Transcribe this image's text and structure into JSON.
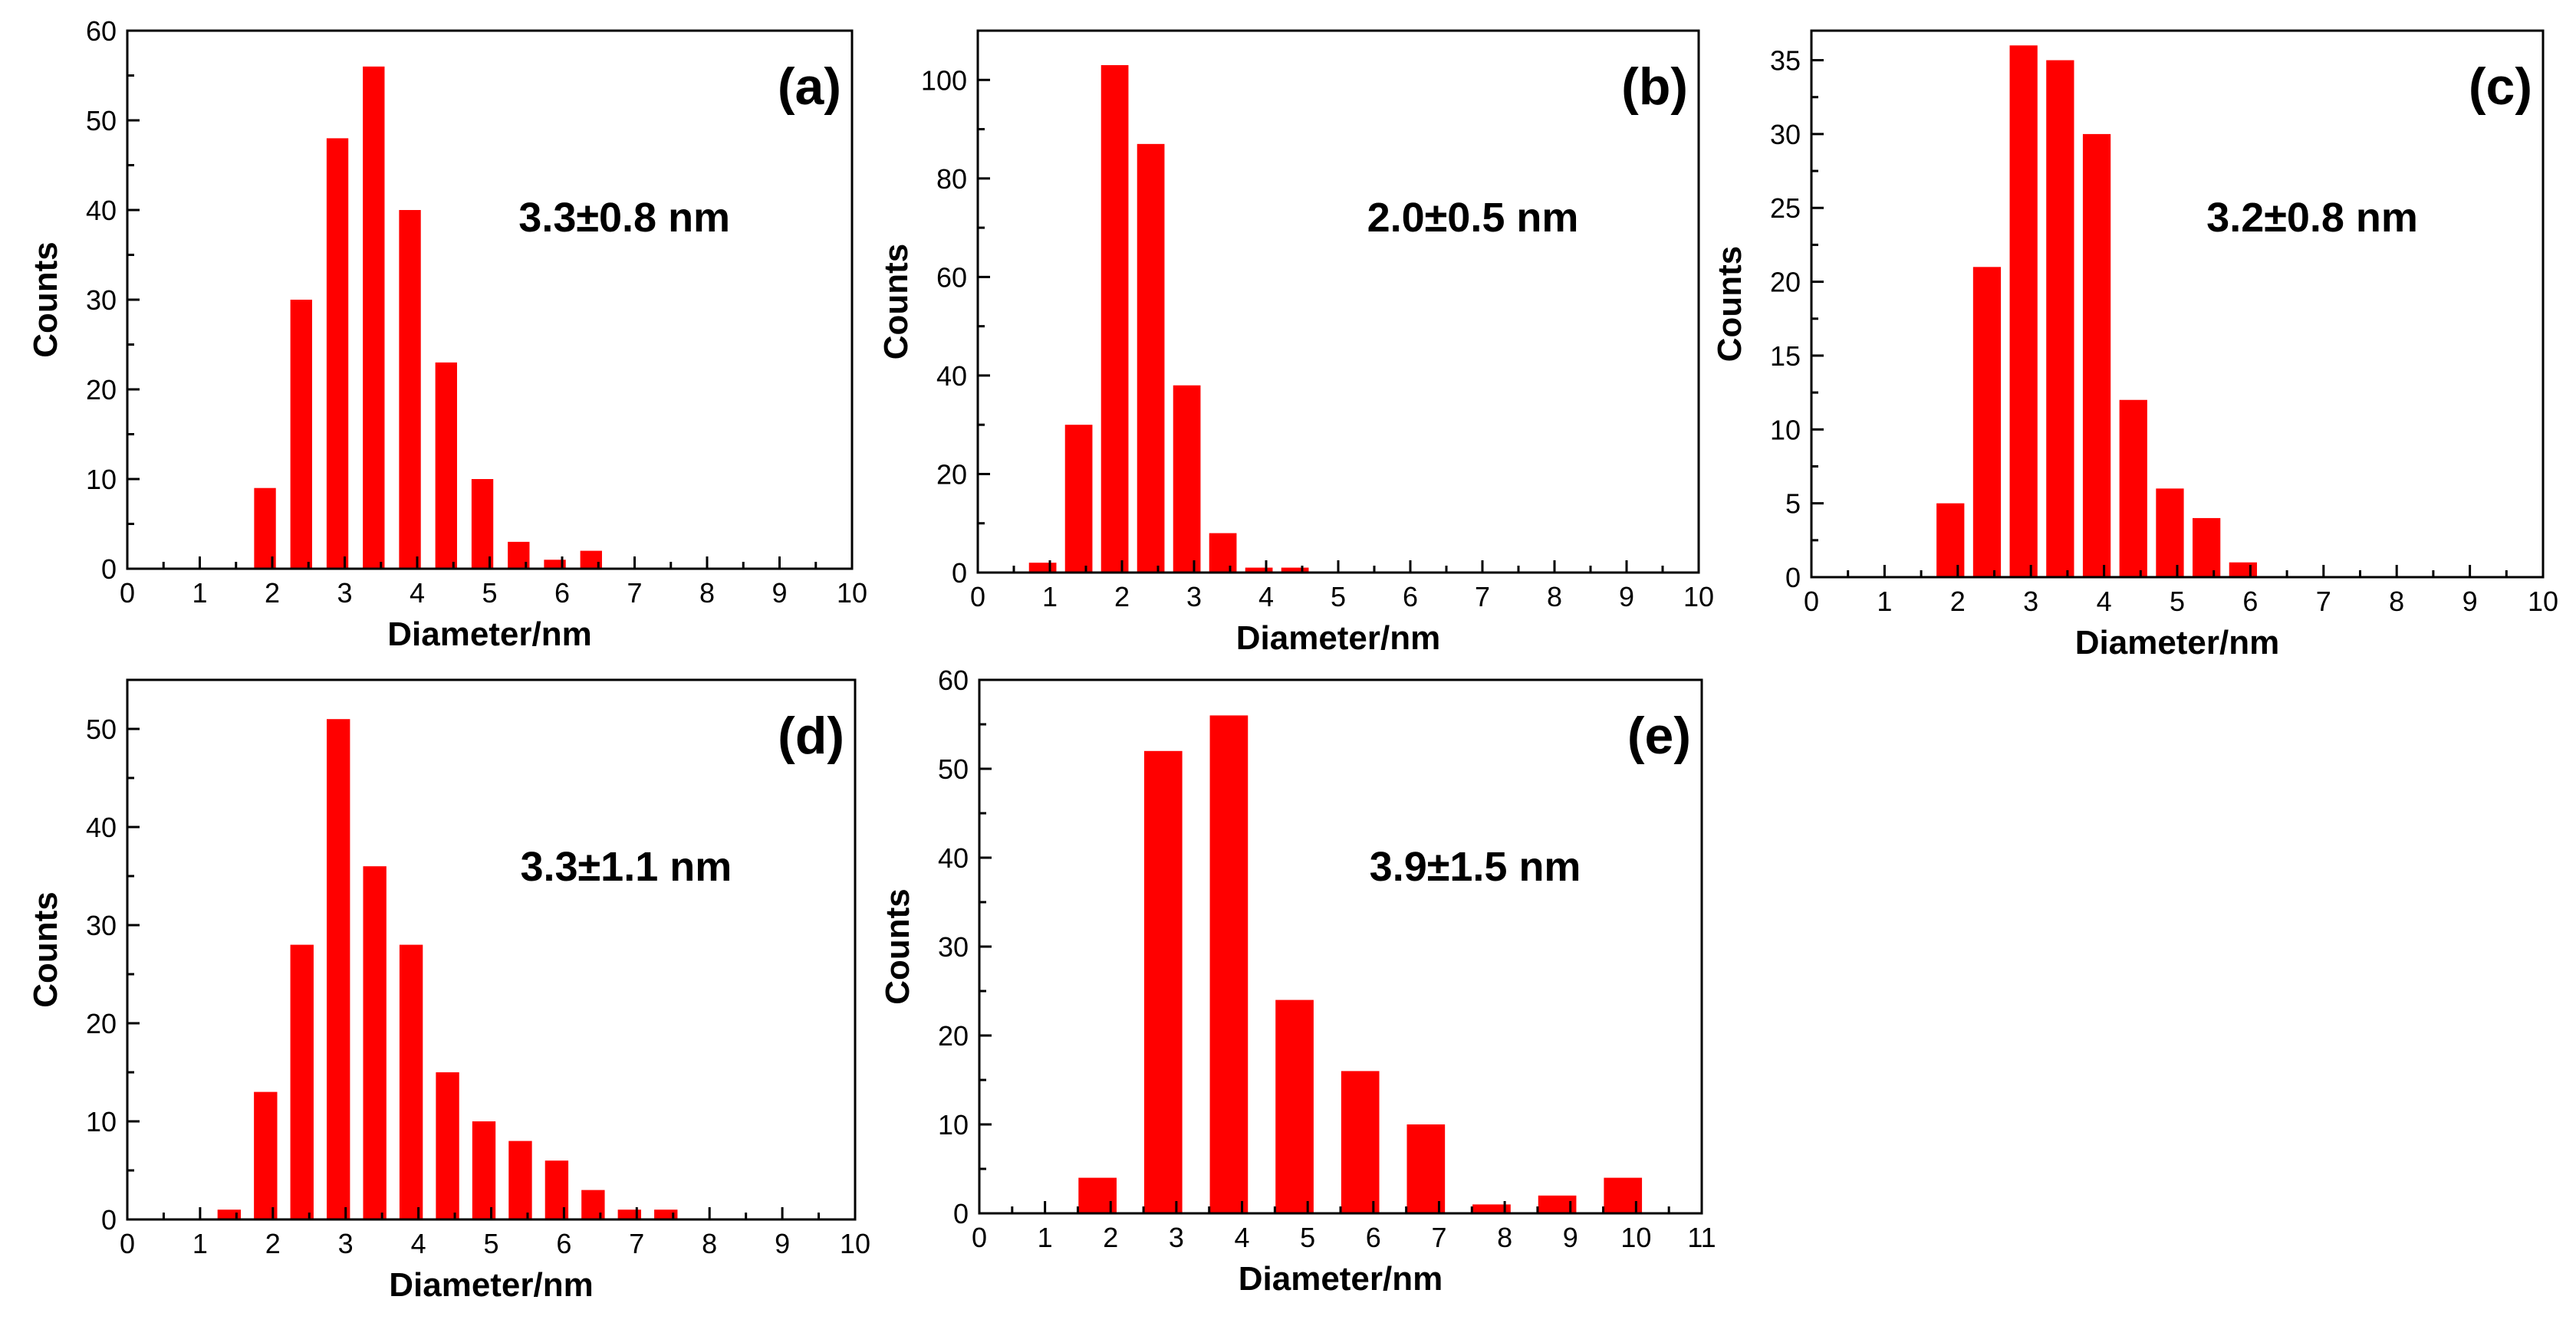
{
  "colors": {
    "bar": "#ff0000",
    "axis": "#000000",
    "background": "#ffffff"
  },
  "chart_data": [
    {
      "type": "bar",
      "panel_label": "(a)",
      "annotation": "3.3±0.8 nm",
      "xlabel": "Diameter/nm",
      "ylabel": "Counts",
      "xlim": [
        0,
        10
      ],
      "ylim": [
        0,
        60
      ],
      "x_ticks": [
        0,
        1,
        2,
        3,
        4,
        5,
        6,
        7,
        8,
        9,
        10
      ],
      "y_ticks": [
        0,
        10,
        20,
        30,
        40,
        50,
        60
      ],
      "bar_width": 0.3,
      "x": [
        1.9,
        2.4,
        2.9,
        3.4,
        3.9,
        4.4,
        4.9,
        5.4,
        5.9,
        6.4
      ],
      "values": [
        9,
        30,
        48,
        56,
        40,
        23,
        10,
        3,
        1,
        2
      ]
    },
    {
      "type": "bar",
      "panel_label": "(b)",
      "annotation": "2.0±0.5 nm",
      "xlabel": "Diameter/nm",
      "ylabel": "Counts",
      "xlim": [
        0,
        10
      ],
      "ylim": [
        0,
        110
      ],
      "x_ticks": [
        0,
        1,
        2,
        3,
        4,
        5,
        6,
        7,
        8,
        9,
        10
      ],
      "y_ticks": [
        0,
        20,
        40,
        60,
        80,
        100
      ],
      "bar_width": 0.38,
      "x": [
        0.9,
        1.4,
        1.9,
        2.4,
        2.9,
        3.4,
        3.9,
        4.4
      ],
      "values": [
        2,
        30,
        103,
        87,
        38,
        8,
        1,
        1
      ]
    },
    {
      "type": "bar",
      "panel_label": "(c)",
      "annotation": "3.2±0.8 nm",
      "xlabel": "Diameter/nm",
      "ylabel": "Counts",
      "xlim": [
        0,
        10
      ],
      "ylim": [
        0,
        37
      ],
      "x_ticks": [
        0,
        1,
        2,
        3,
        4,
        5,
        6,
        7,
        8,
        9,
        10
      ],
      "y_ticks": [
        0,
        5,
        10,
        15,
        20,
        25,
        30,
        35
      ],
      "bar_width": 0.38,
      "x": [
        1.9,
        2.4,
        2.9,
        3.4,
        3.9,
        4.4,
        4.9,
        5.4,
        5.9
      ],
      "values": [
        5,
        21,
        36,
        35,
        30,
        12,
        6,
        4,
        1
      ]
    },
    {
      "type": "bar",
      "panel_label": "(d)",
      "annotation": "3.3±1.1 nm",
      "xlabel": "Diameter/nm",
      "ylabel": "Counts",
      "xlim": [
        0,
        10
      ],
      "ylim": [
        0,
        55
      ],
      "x_ticks": [
        0,
        1,
        2,
        3,
        4,
        5,
        6,
        7,
        8,
        9,
        10
      ],
      "y_ticks": [
        0,
        10,
        20,
        30,
        40,
        50
      ],
      "bar_width": 0.32,
      "x": [
        1.4,
        1.9,
        2.4,
        2.9,
        3.4,
        3.9,
        4.4,
        4.9,
        5.4,
        5.9,
        6.4,
        6.9,
        7.4
      ],
      "values": [
        1,
        13,
        28,
        51,
        36,
        28,
        15,
        10,
        8,
        6,
        3,
        1,
        1
      ]
    },
    {
      "type": "bar",
      "panel_label": "(e)",
      "annotation": "3.9±1.5 nm",
      "xlabel": "Diameter/nm",
      "ylabel": "Counts",
      "xlim": [
        0,
        11
      ],
      "ylim": [
        0,
        60
      ],
      "x_ticks": [
        0,
        1,
        2,
        3,
        4,
        5,
        6,
        7,
        8,
        9,
        10,
        11
      ],
      "y_ticks": [
        0,
        10,
        20,
        30,
        40,
        50,
        60
      ],
      "bar_width": 0.58,
      "x": [
        1.8,
        2.8,
        3.8,
        4.8,
        5.8,
        6.8,
        7.8,
        8.8,
        9.8
      ],
      "values": [
        4,
        52,
        56,
        24,
        16,
        10,
        1,
        2,
        4
      ]
    }
  ]
}
